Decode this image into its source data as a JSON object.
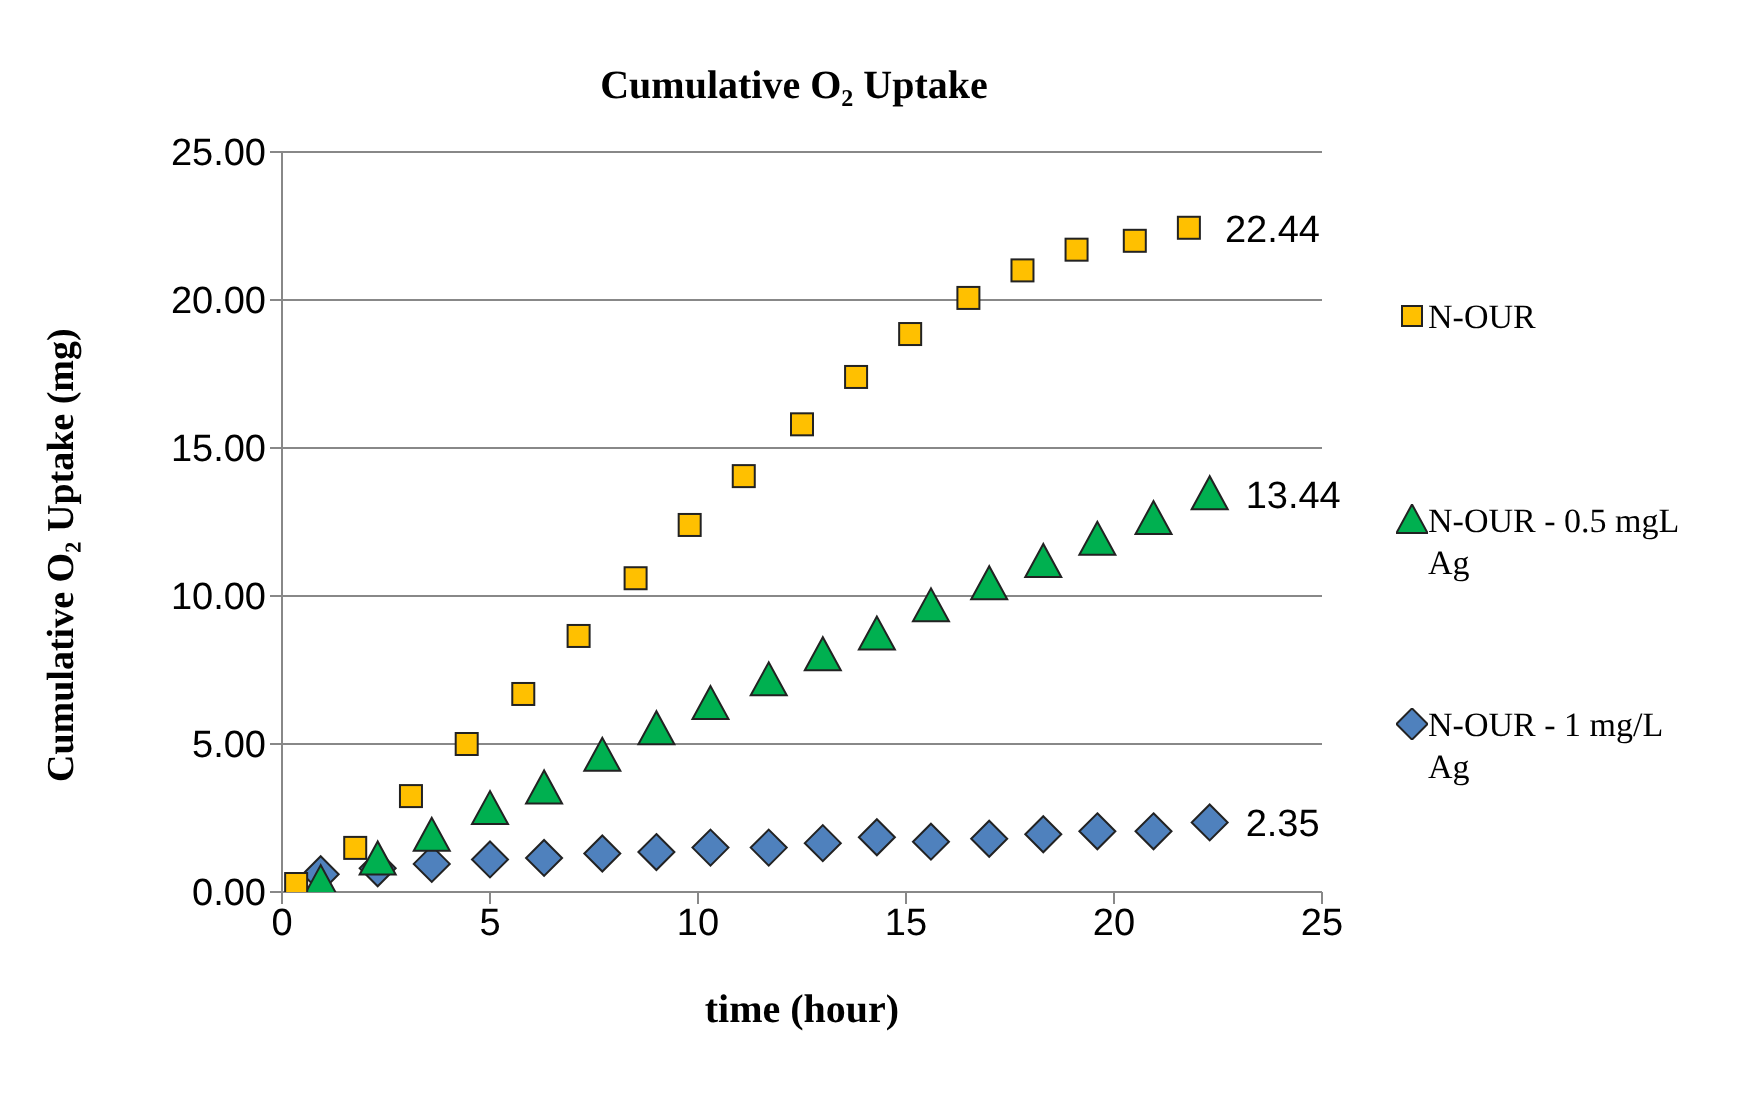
{
  "chart_data": {
    "type": "scatter",
    "title": "Cumulative O₂ Uptake",
    "xlabel": "time (hour)",
    "ylabel": "Cumulative O₂ Uptake  (mg)",
    "xlim": [
      0,
      25
    ],
    "xticks": [
      0,
      5,
      10,
      15,
      20,
      25
    ],
    "ylim": [
      0,
      25
    ],
    "yticks": [
      {
        "value": 0,
        "label": "0.00"
      },
      {
        "value": 5,
        "label": "5.00"
      },
      {
        "value": 10,
        "label": "10.00"
      },
      {
        "value": 15,
        "label": "15.00"
      },
      {
        "value": 20,
        "label": "20.00"
      },
      {
        "value": 25,
        "label": "25.00"
      }
    ],
    "grid": "y",
    "legend": "right",
    "series": [
      {
        "name": "N-OUR",
        "color": "#ffc000",
        "marker": "square",
        "x": [
          0.34,
          1.76,
          3.1,
          4.44,
          5.8,
          7.13,
          8.5,
          9.8,
          11.1,
          12.5,
          13.8,
          15.1,
          16.5,
          17.8,
          19.1,
          20.5,
          21.8
        ],
        "values": [
          0.27,
          1.49,
          3.24,
          5.0,
          6.69,
          8.65,
          10.6,
          12.4,
          14.05,
          15.8,
          17.4,
          18.85,
          20.07,
          21.0,
          21.7,
          22.0,
          22.44
        ],
        "value_labels": [
          null,
          null,
          null,
          null,
          null,
          null,
          null,
          null,
          null,
          null,
          null,
          null,
          null,
          null,
          null,
          null,
          "22.44"
        ]
      },
      {
        "name": "N-OUR - 0.5 mgL Ag",
        "color": "#00b050",
        "marker": "triangle",
        "x": [
          0.93,
          2.3,
          3.6,
          5.0,
          6.3,
          7.7,
          9.0,
          10.3,
          11.7,
          13.0,
          14.3,
          15.6,
          17.0,
          18.3,
          19.6,
          20.95,
          22.3
        ],
        "values": [
          0.3,
          1.1,
          1.9,
          2.8,
          3.5,
          4.6,
          5.5,
          6.35,
          7.15,
          8.0,
          8.7,
          9.65,
          10.4,
          11.15,
          11.9,
          12.6,
          13.44
        ],
        "value_labels": [
          null,
          null,
          null,
          null,
          null,
          null,
          null,
          null,
          null,
          null,
          null,
          null,
          null,
          null,
          null,
          null,
          "13.44"
        ]
      },
      {
        "name": "N-OUR - 1 mg/L Ag",
        "color": "#4f81bd",
        "marker": "diamond",
        "x": [
          0.93,
          2.3,
          3.6,
          5.0,
          6.3,
          7.7,
          9.0,
          10.3,
          11.7,
          13.0,
          14.3,
          15.6,
          17.0,
          18.3,
          19.6,
          20.95,
          22.3
        ],
        "values": [
          0.6,
          0.8,
          0.95,
          1.1,
          1.15,
          1.3,
          1.35,
          1.5,
          1.5,
          1.65,
          1.85,
          1.7,
          1.8,
          1.95,
          2.05,
          2.05,
          2.35
        ],
        "value_labels": [
          null,
          null,
          null,
          null,
          null,
          null,
          null,
          null,
          null,
          null,
          null,
          null,
          null,
          null,
          null,
          null,
          "2.35"
        ]
      }
    ]
  }
}
